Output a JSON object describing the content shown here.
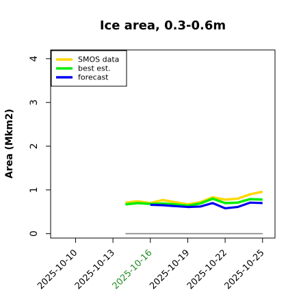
{
  "chart_data": {
    "type": "line",
    "title": "Ice area, 0.3-0.6m",
    "ylabel": "Area (Mkm2)",
    "xlabel": "",
    "xlim": [
      "2025-10-08",
      "2025-10-26"
    ],
    "ylim": [
      -0.1,
      4.2
    ],
    "yticks": [
      0,
      1,
      2,
      3,
      4
    ],
    "xticks": [
      "2025-10-10",
      "2025-10-13",
      "2025-10-16",
      "2025-10-19",
      "2025-10-22",
      "2025-10-25"
    ],
    "highlight_tick": "2025-10-16",
    "highlight_color": "#228B22",
    "grid": false,
    "legend_position": "top-left",
    "series": [
      {
        "name": "SMOS data",
        "color": "#FFD700",
        "x": [
          "2025-10-14",
          "2025-10-15",
          "2025-10-16",
          "2025-10-17",
          "2025-10-18",
          "2025-10-19",
          "2025-10-20",
          "2025-10-21",
          "2025-10-22",
          "2025-10-23",
          "2025-10-24",
          "2025-10-25"
        ],
        "values": [
          0.71,
          0.74,
          0.7,
          0.77,
          0.72,
          0.67,
          0.72,
          0.83,
          0.78,
          0.8,
          0.9,
          0.96
        ]
      },
      {
        "name": "best est.",
        "color": "#00EE00",
        "x": [
          "2025-10-14",
          "2025-10-15",
          "2025-10-16",
          "2025-10-17",
          "2025-10-18",
          "2025-10-19",
          "2025-10-20",
          "2025-10-21",
          "2025-10-22",
          "2025-10-23",
          "2025-10-24",
          "2025-10-25"
        ],
        "values": [
          0.67,
          0.7,
          0.68,
          0.69,
          0.67,
          0.64,
          0.69,
          0.8,
          0.7,
          0.71,
          0.79,
          0.78
        ]
      },
      {
        "name": "forecast",
        "color": "#0000EE",
        "x": [
          "2025-10-16",
          "2025-10-17",
          "2025-10-18",
          "2025-10-19",
          "2025-10-20",
          "2025-10-21",
          "2025-10-22",
          "2025-10-23",
          "2025-10-24",
          "2025-10-25"
        ],
        "values": [
          0.66,
          0.65,
          0.63,
          0.61,
          0.62,
          0.7,
          0.58,
          0.61,
          0.71,
          0.7
        ]
      }
    ],
    "baseline": {
      "color": "#808080",
      "x": [
        "2025-10-14",
        "2025-10-25"
      ],
      "values": [
        0,
        0
      ]
    }
  }
}
